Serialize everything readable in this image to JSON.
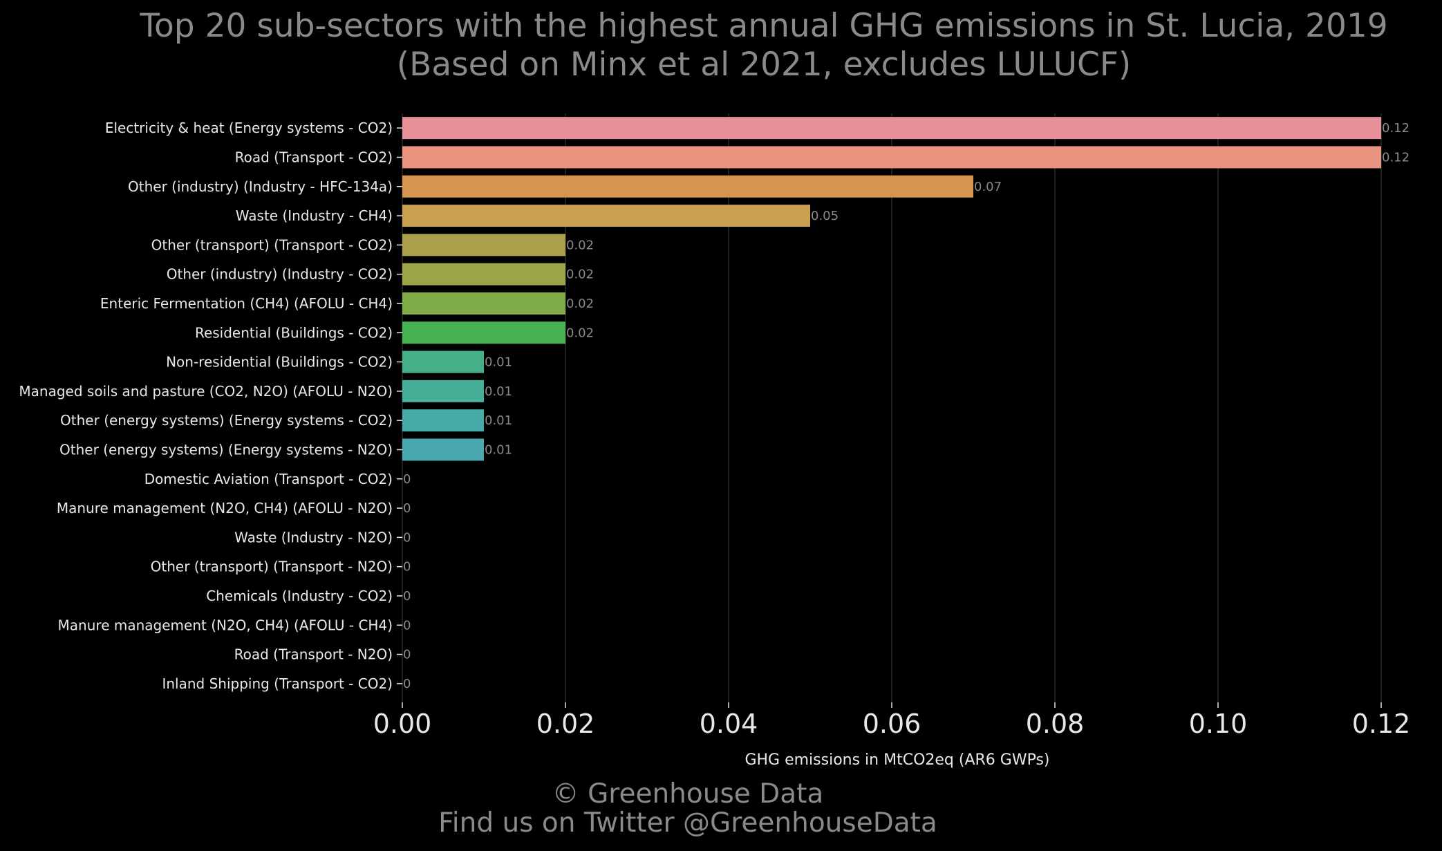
{
  "title_line1": "Top 20 sub-sectors with the highest annual GHG emissions in St. Lucia, 2019",
  "title_line2": "(Based on Minx et al 2021, excludes LULUCF)",
  "footer_line1": "© Greenhouse Data",
  "footer_line2": "Find us on Twitter @GreenhouseData",
  "colors": {
    "background": "#000000",
    "text": "#8a8a8a",
    "labels": "#e8e8e8",
    "grid": "#2a2a2a",
    "bars": [
      "#e8909a",
      "#e89480",
      "#d6954e",
      "#c9a04f",
      "#aaa04a",
      "#9ba447",
      "#80ac48",
      "#46b251",
      "#45b087",
      "#46af98",
      "#47aca8",
      "#4aa9b0",
      "#4da6b8",
      "#52a3c0",
      "#5aa0c6",
      "#6a9bc9",
      "#7b96cc",
      "#8e90cc",
      "#a18acb",
      "#b485c8"
    ]
  },
  "chart_data": {
    "type": "bar",
    "orientation": "horizontal",
    "title": "Top 20 sub-sectors with the highest annual GHG emissions in St. Lucia, 2019 (Based on Minx et al 2021, excludes LULUCF)",
    "xlabel": "GHG emissions in MtCO2eq (AR6 GWPs)",
    "ylabel": "",
    "xlim": [
      0,
      0.12
    ],
    "xticks": [
      "0.00",
      "0.02",
      "0.04",
      "0.06",
      "0.08",
      "0.10",
      "0.12"
    ],
    "xtick_values": [
      0,
      0.02,
      0.04,
      0.06,
      0.08,
      0.1,
      0.12
    ],
    "grid": "vertical",
    "categories": [
      "Electricity & heat (Energy systems - CO2)",
      "Road (Transport - CO2)",
      "Other (industry) (Industry - HFC-134a)",
      "Waste (Industry - CH4)",
      "Other (transport) (Transport - CO2)",
      "Other (industry) (Industry - CO2)",
      "Enteric Fermentation (CH4) (AFOLU - CH4)",
      "Residential (Buildings - CO2)",
      "Non-residential (Buildings - CO2)",
      "Managed soils and pasture (CO2, N2O) (AFOLU - N2O)",
      "Other (energy systems) (Energy systems - CO2)",
      "Other (energy systems) (Energy systems - N2O)",
      "Domestic Aviation (Transport - CO2)",
      "Manure management (N2O, CH4) (AFOLU - N2O)",
      "Waste (Industry - N2O)",
      "Other (transport) (Transport - N2O)",
      "Chemicals (Industry - CO2)",
      "Manure management (N2O, CH4) (AFOLU - CH4)",
      "Road (Transport - N2O)",
      "Inland Shipping (Transport - CO2)"
    ],
    "values": [
      0.12,
      0.12,
      0.07,
      0.05,
      0.02,
      0.02,
      0.02,
      0.02,
      0.01,
      0.01,
      0.01,
      0.01,
      0,
      0,
      0,
      0,
      0,
      0,
      0,
      0
    ],
    "data_labels": [
      "0.12",
      "0.12",
      "0.07",
      "0.05",
      "0.02",
      "0.02",
      "0.02",
      "0.02",
      "0.01",
      "0.01",
      "0.01",
      "0.01",
      "0",
      "0",
      "0",
      "0",
      "0",
      "0",
      "0",
      "0"
    ]
  }
}
